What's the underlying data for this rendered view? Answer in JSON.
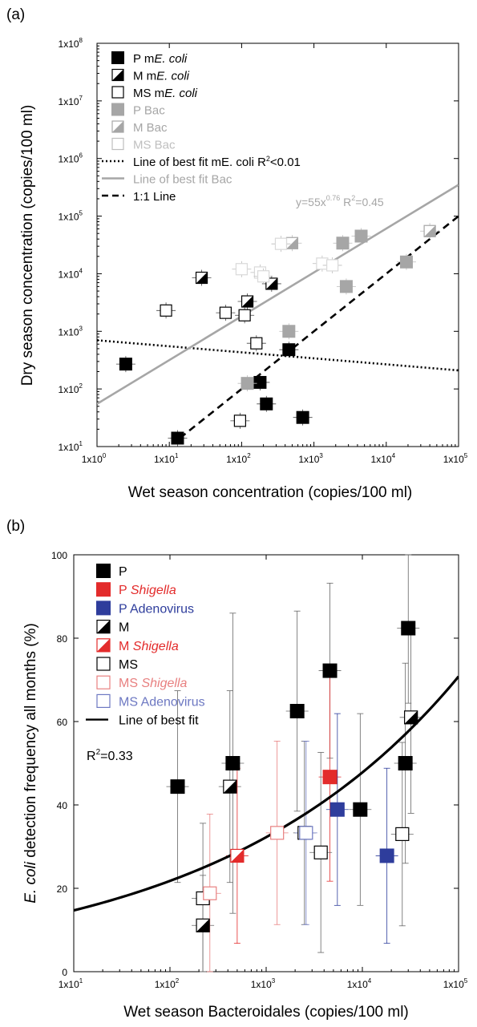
{
  "chart_data": [
    {
      "panel_label": "(a)",
      "type": "scatter",
      "xlabel": "Wet season concentration (copies/100 ml)",
      "ylabel": "Dry season concentration (copies/100 ml)",
      "xscale": "log",
      "yscale": "log",
      "xlim": [
        1,
        100000
      ],
      "ylim": [
        10,
        100000000
      ],
      "x_ticks": [
        {
          "base": "1x10",
          "exp": "0",
          "value": 1
        },
        {
          "base": "1x10",
          "exp": "1",
          "value": 10
        },
        {
          "base": "1x10",
          "exp": "2",
          "value": 100
        },
        {
          "base": "1x10",
          "exp": "3",
          "value": 1000
        },
        {
          "base": "1x10",
          "exp": "4",
          "value": 10000
        },
        {
          "base": "1x10",
          "exp": "5",
          "value": 100000
        }
      ],
      "y_ticks": [
        {
          "base": "1x10",
          "exp": "1",
          "value": 10
        },
        {
          "base": "1x10",
          "exp": "2",
          "value": 100
        },
        {
          "base": "1x10",
          "exp": "3",
          "value": 1000
        },
        {
          "base": "1x10",
          "exp": "4",
          "value": 10000
        },
        {
          "base": "1x10",
          "exp": "5",
          "value": 100000
        },
        {
          "base": "1x10",
          "exp": "6",
          "value": 1000000
        },
        {
          "base": "1x10",
          "exp": "7",
          "value": 10000000
        },
        {
          "base": "1x10",
          "exp": "8",
          "value": 100000000
        }
      ],
      "legend_position": "top-left",
      "legend": [
        {
          "marker": "filled",
          "color": "#000000",
          "text": "P m",
          "italic": "E. coli"
        },
        {
          "marker": "half",
          "color": "#000000",
          "text": "M m",
          "italic": "E. coli"
        },
        {
          "marker": "open",
          "color": "#000000",
          "text": "MS m",
          "italic": "E. coli"
        },
        {
          "marker": "filled",
          "color": "#a6a6a6",
          "text": "P Bac",
          "italic": ""
        },
        {
          "marker": "half",
          "color": "#a6a6a6",
          "text": "M Bac",
          "italic": ""
        },
        {
          "marker": "open",
          "color": "#bfbfbf",
          "text": "MS Bac",
          "italic": ""
        },
        {
          "marker": "dotted-line",
          "color": "#000000",
          "text": "Line of best fit mE. coli R",
          "sup": "2",
          "after": "<0.01"
        },
        {
          "marker": "solid-line",
          "color": "#a6a6a6",
          "text": "Line of best fit Bac",
          "italic": ""
        },
        {
          "marker": "dashed-line",
          "color": "#000000",
          "text": "1:1 Line",
          "italic": ""
        }
      ],
      "annotation": {
        "prefix": "y=55x",
        "sup": "0.76",
        "suffix": " R",
        "sup2": "2",
        "suffix2": "=0.45"
      },
      "fit_lines": [
        {
          "name": "Line of best fit mE. coli",
          "style": "dotted",
          "color": "#000000",
          "points": [
            [
              1,
              700
            ],
            [
              100000,
              210
            ]
          ]
        },
        {
          "name": "Line of best fit Bac",
          "style": "solid",
          "color": "#a6a6a6",
          "points": [
            [
              1,
              55
            ],
            [
              100000,
              350000
            ]
          ]
        },
        {
          "name": "1:1 Line",
          "style": "dashed",
          "color": "#000000",
          "points": [
            [
              14,
              14
            ],
            [
              100000,
              100000
            ]
          ]
        }
      ],
      "series": [
        {
          "name": "P mE. coli",
          "marker": "filled",
          "color": "#000000",
          "points": [
            [
              2.5,
              270
            ],
            [
              13,
              14
            ],
            [
              180,
              130
            ],
            [
              220,
              55
            ],
            [
              450,
              480
            ],
            [
              700,
              32
            ]
          ]
        },
        {
          "name": "M mE. coli",
          "marker": "half",
          "color": "#000000",
          "points": [
            [
              28,
              8500
            ],
            [
              120,
              3300
            ],
            [
              260,
              6700
            ]
          ]
        },
        {
          "name": "MS mE. coli",
          "marker": "open",
          "color": "#000000",
          "points": [
            [
              9,
              2300
            ],
            [
              60,
              2100
            ],
            [
              110,
              1900
            ],
            [
              160,
              620
            ],
            [
              95,
              28
            ]
          ]
        },
        {
          "name": "P Bac",
          "marker": "filled",
          "color": "#a6a6a6",
          "points": [
            [
              2500,
              34000
            ],
            [
              4500,
              45000
            ],
            [
              2800,
              6000
            ],
            [
              450,
              1000
            ],
            [
              120,
              125
            ],
            [
              19000,
              16000
            ]
          ]
        },
        {
          "name": "M Bac",
          "marker": "half",
          "color": "#a6a6a6",
          "points": [
            [
              500,
              34000
            ],
            [
              40000,
              55000
            ]
          ]
        },
        {
          "name": "MS Bac",
          "marker": "open",
          "color": "#d9d9d9",
          "points": [
            [
              350,
              33000
            ],
            [
              180,
              10500
            ],
            [
              1300,
              15000
            ],
            [
              1800,
              14000
            ],
            [
              200,
              9000
            ],
            [
              100,
              12000
            ]
          ]
        }
      ]
    },
    {
      "panel_label": "(b)",
      "type": "scatter",
      "xlabel": "Wet season Bacteroidales (copies/100 ml)",
      "ylabel_italic": "E. coli",
      "ylabel_rest": " detection frequency all months (%)",
      "xscale": "log",
      "xlim": [
        10,
        100000
      ],
      "ylim": [
        0,
        100
      ],
      "x_ticks": [
        {
          "base": "1x10",
          "exp": "1",
          "value": 10
        },
        {
          "base": "1x10",
          "exp": "2",
          "value": 100
        },
        {
          "base": "1x10",
          "exp": "3",
          "value": 1000
        },
        {
          "base": "1x10",
          "exp": "4",
          "value": 10000
        },
        {
          "base": "1x10",
          "exp": "5",
          "value": 100000
        }
      ],
      "y_ticks": [
        0,
        20,
        40,
        60,
        80,
        100
      ],
      "legend_position": "top-left",
      "legend": [
        {
          "marker": "filled",
          "color": "#000000",
          "text": "P",
          "italic": ""
        },
        {
          "marker": "filled",
          "color": "#e32b2b",
          "text": "P ",
          "italic": "Shigella"
        },
        {
          "marker": "filled",
          "color": "#2e3d9c",
          "text": "P Adenovirus",
          "italic": ""
        },
        {
          "marker": "half",
          "color": "#000000",
          "text": "M",
          "italic": ""
        },
        {
          "marker": "half",
          "color": "#e32b2b",
          "text": "M ",
          "italic": "Shigella"
        },
        {
          "marker": "open",
          "color": "#000000",
          "text": "MS",
          "italic": ""
        },
        {
          "marker": "open",
          "color": "#e88080",
          "text": "MS ",
          "italic": "Shigella"
        },
        {
          "marker": "open",
          "color": "#6d78c2",
          "text": "MS Adenovirus",
          "italic": ""
        },
        {
          "marker": "solid-line",
          "color": "#000000",
          "text": "Line of best fit",
          "italic": ""
        }
      ],
      "annotation": {
        "prefix": "R",
        "sup": "2",
        "suffix": "=0.33"
      },
      "fit_curve": {
        "name": "Line of best fit",
        "x_range": [
          10,
          100000
        ],
        "y_at_xmin": 14.7,
        "y_at_xmax": 70.8
      },
      "series": [
        {
          "name": "P",
          "marker": "filled",
          "color": "#000000",
          "points": [
            [
              120,
              44.4,
              23
            ],
            [
              450,
              50,
              36
            ],
            [
              2100,
              62.5,
              24
            ],
            [
              4600,
              72.2,
              21
            ],
            [
              9500,
              38.9,
              23
            ],
            [
              28000,
              50,
              24
            ],
            [
              30000,
              82.4,
              18
            ]
          ]
        },
        {
          "name": "P Shigella",
          "marker": "filled",
          "color": "#e32b2b",
          "points": [
            [
              4600,
              46.7,
              25
            ]
          ]
        },
        {
          "name": "P Adenovirus",
          "marker": "filled",
          "color": "#2e3d9c",
          "points": [
            [
              5500,
              38.9,
              23
            ],
            [
              18000,
              27.8,
              21
            ]
          ]
        },
        {
          "name": "M",
          "marker": "half",
          "color": "#000000",
          "points": [
            [
              220,
              11.1,
              12
            ],
            [
              420,
              44.4,
              23
            ],
            [
              32000,
              61,
              23
            ]
          ]
        },
        {
          "name": "M Shigella",
          "marker": "half",
          "color": "#e32b2b",
          "points": [
            [
              500,
              27.8,
              21
            ]
          ]
        },
        {
          "name": "MS",
          "marker": "open",
          "color": "#000000",
          "points": [
            [
              220,
              17.6,
              18
            ],
            [
              2500,
              33.3,
              22
            ],
            [
              3700,
              28.6,
              24
            ],
            [
              26000,
              33,
              22
            ]
          ]
        },
        {
          "name": "MS Shigella",
          "marker": "open",
          "color": "#e88080",
          "points": [
            [
              260,
              18.8,
              19
            ],
            [
              1300,
              33.3,
              22
            ]
          ]
        },
        {
          "name": "MS Adenovirus",
          "marker": "open",
          "color": "#6d78c2",
          "points": [
            [
              2600,
              33.3,
              22
            ]
          ]
        }
      ]
    }
  ]
}
